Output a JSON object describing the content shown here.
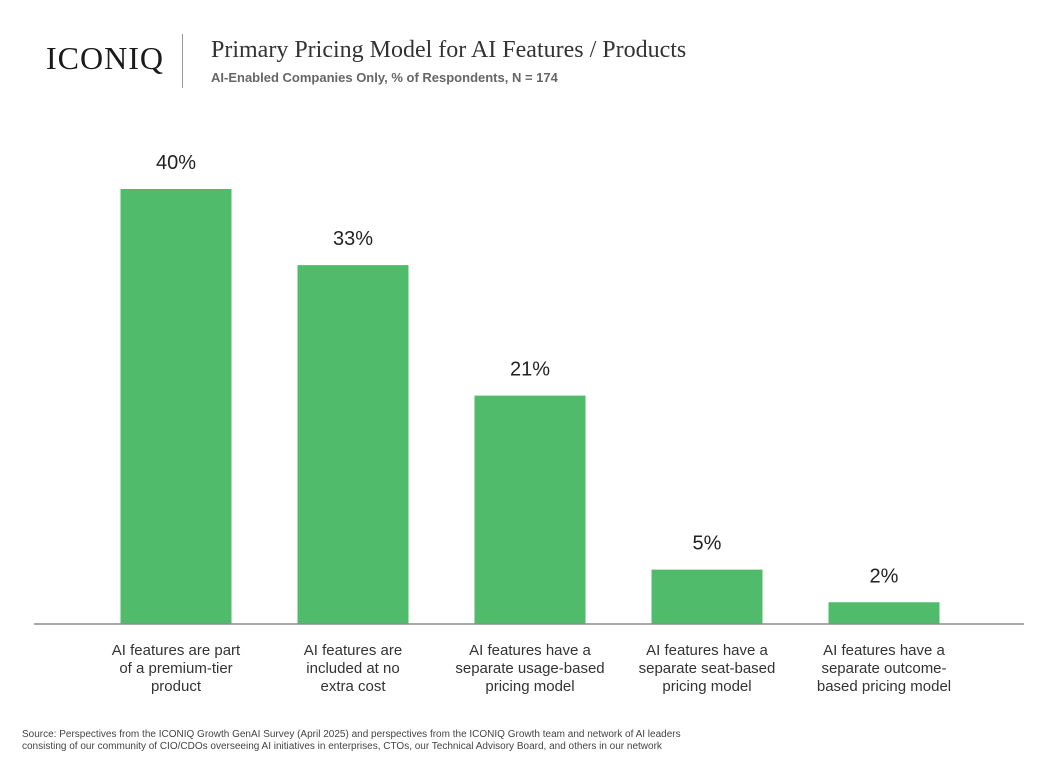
{
  "header": {
    "logo_text": "ICONIQ",
    "title": "Primary Pricing Model for AI Features / Products",
    "subtitle": "AI-Enabled Companies Only, % of Respondents, N = 174"
  },
  "chart_data": {
    "type": "bar",
    "title": "Primary Pricing Model for AI Features / Products",
    "subtitle": "AI-Enabled Companies Only, % of Respondents, N = 174",
    "categories": [
      [
        "AI features are part",
        "of a premium-tier",
        "product"
      ],
      [
        "AI features are",
        "included at no",
        "extra cost"
      ],
      [
        "AI features have a",
        "separate usage-based",
        "pricing model"
      ],
      [
        "AI features have a",
        "separate seat-based",
        "pricing model"
      ],
      [
        "AI features have a",
        "separate outcome-",
        "based pricing model"
      ]
    ],
    "values": [
      40,
      33,
      21,
      5,
      2
    ],
    "value_labels": [
      "40%",
      "33%",
      "21%",
      "5%",
      "2%"
    ],
    "ylim": [
      0,
      40
    ],
    "grid": false,
    "legend": "none",
    "bar_color": "#4fbb6b",
    "axis_color": "#8c8c8c"
  },
  "footnote": {
    "line1": "Source: Perspectives from the ICONIQ Growth GenAI Survey (April 2025) and perspectives from the ICONIQ Growth team and network of AI leaders",
    "line2": "consisting of our community of CIO/CDOs overseeing AI initiatives in enterprises, CTOs, our Technical Advisory Board, and others in our network"
  }
}
